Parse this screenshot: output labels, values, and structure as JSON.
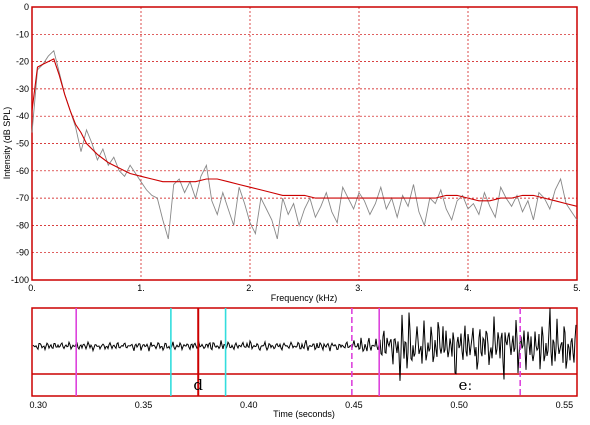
{
  "chart_data": [
    {
      "type": "line",
      "xlabel": "Frequency (kHz)",
      "ylabel": "Intensity (dB SPL)",
      "xlim": [
        0,
        5
      ],
      "ylim": [
        -100,
        0
      ],
      "x_ticks": [
        "0.",
        "1.",
        "2.",
        "3.",
        "4.",
        "5."
      ],
      "y_ticks": [
        "0",
        "-10",
        "-20",
        "-30",
        "-40",
        "-50",
        "-60",
        "-70",
        "-80",
        "-90",
        "-100"
      ],
      "grid": true,
      "series": [
        {
          "color": "#888888",
          "x": [
            0.0,
            0.05,
            0.1,
            0.15,
            0.2,
            0.25,
            0.3,
            0.35,
            0.4,
            0.45,
            0.5,
            0.55,
            0.6,
            0.65,
            0.7,
            0.75,
            0.8,
            0.85,
            0.9,
            0.95,
            1.0,
            1.05,
            1.1,
            1.15,
            1.2,
            1.25,
            1.3,
            1.35,
            1.4,
            1.45,
            1.5,
            1.55,
            1.6,
            1.65,
            1.7,
            1.75,
            1.8,
            1.85,
            1.9,
            1.95,
            2.0,
            2.05,
            2.1,
            2.15,
            2.2,
            2.25,
            2.3,
            2.35,
            2.4,
            2.45,
            2.5,
            2.55,
            2.6,
            2.65,
            2.7,
            2.75,
            2.8,
            2.85,
            2.9,
            2.95,
            3.0,
            3.05,
            3.1,
            3.15,
            3.2,
            3.25,
            3.3,
            3.35,
            3.4,
            3.45,
            3.5,
            3.55,
            3.6,
            3.65,
            3.7,
            3.75,
            3.8,
            3.85,
            3.9,
            3.95,
            4.0,
            4.05,
            4.1,
            4.15,
            4.2,
            4.25,
            4.3,
            4.35,
            4.4,
            4.45,
            4.5,
            4.55,
            4.6,
            4.65,
            4.7,
            4.75,
            4.8,
            4.85,
            4.9,
            4.95,
            5.0
          ],
          "y": [
            -46,
            -23,
            -21,
            -18,
            -16,
            -24,
            -32,
            -38,
            -44,
            -53,
            -45,
            -50,
            -56,
            -52,
            -58,
            -55,
            -60,
            -62,
            -58,
            -61,
            -64,
            -67,
            -69,
            -70,
            -78,
            -85,
            -65,
            -63,
            -68,
            -64,
            -70,
            -62,
            -58,
            -71,
            -76,
            -68,
            -74,
            -80,
            -66,
            -72,
            -79,
            -83,
            -70,
            -74,
            -78,
            -85,
            -70,
            -76,
            -72,
            -80,
            -74,
            -70,
            -77,
            -73,
            -68,
            -75,
            -79,
            -66,
            -70,
            -74,
            -68,
            -71,
            -76,
            -72,
            -66,
            -74,
            -70,
            -77,
            -69,
            -73,
            -65,
            -75,
            -80,
            -70,
            -72,
            -67,
            -74,
            -78,
            -71,
            -69,
            -74,
            -72,
            -76,
            -68,
            -73,
            -77,
            -66,
            -70,
            -73,
            -69,
            -75,
            -71,
            -78,
            -68,
            -70,
            -74,
            -67,
            -63,
            -72,
            -75,
            -78
          ],
          "name": ""
        },
        {
          "color": "#cc0000",
          "x": [
            0.0,
            0.05,
            0.1,
            0.15,
            0.2,
            0.25,
            0.3,
            0.35,
            0.4,
            0.45,
            0.5,
            0.6,
            0.7,
            0.8,
            0.9,
            1.0,
            1.1,
            1.2,
            1.3,
            1.4,
            1.5,
            1.6,
            1.7,
            1.8,
            1.9,
            2.0,
            2.1,
            2.2,
            2.3,
            2.4,
            2.5,
            2.6,
            2.7,
            2.8,
            2.9,
            3.0,
            3.1,
            3.2,
            3.3,
            3.4,
            3.5,
            3.6,
            3.7,
            3.8,
            3.9,
            4.0,
            4.1,
            4.2,
            4.3,
            4.4,
            4.5,
            4.6,
            4.7,
            4.8,
            4.9,
            5.0
          ],
          "y": [
            -38,
            -22,
            -21,
            -20,
            -19,
            -25,
            -32,
            -38,
            -43,
            -46,
            -50,
            -54,
            -57,
            -59,
            -61,
            -62,
            -63,
            -64,
            -64,
            -64,
            -64,
            -63,
            -63,
            -64,
            -65,
            -66,
            -67,
            -68,
            -69,
            -69,
            -69,
            -70,
            -70,
            -70,
            -70,
            -70,
            -70,
            -70,
            -70,
            -70,
            -70,
            -70,
            -70,
            -69,
            -69,
            -70,
            -71,
            -71,
            -70,
            -70,
            -69,
            -69,
            -70,
            -71,
            -72,
            -73
          ],
          "name": ""
        }
      ]
    },
    {
      "type": "line",
      "xlabel": "Time (seconds)",
      "xlim": [
        0.297,
        0.556
      ],
      "x_ticks": [
        "0.30",
        "0.35",
        "0.40",
        "0.45",
        "0.50",
        "0.55"
      ],
      "markers": [
        {
          "t": 0.318,
          "color": "#dd44dd",
          "style": "solid"
        },
        {
          "t": 0.363,
          "color": "#33dddd",
          "style": "solid"
        },
        {
          "t": 0.376,
          "color": "#cc0000",
          "style": "solid"
        },
        {
          "t": 0.389,
          "color": "#33dddd",
          "style": "solid"
        },
        {
          "t": 0.449,
          "color": "#dd44dd",
          "style": "dashed"
        },
        {
          "t": 0.462,
          "color": "#dd44dd",
          "style": "solid"
        },
        {
          "t": 0.529,
          "color": "#dd44dd",
          "style": "dashed"
        }
      ],
      "segments": [
        {
          "label": "d",
          "center_t": 0.376
        },
        {
          "label": "eː",
          "center_t": 0.503
        }
      ]
    }
  ]
}
